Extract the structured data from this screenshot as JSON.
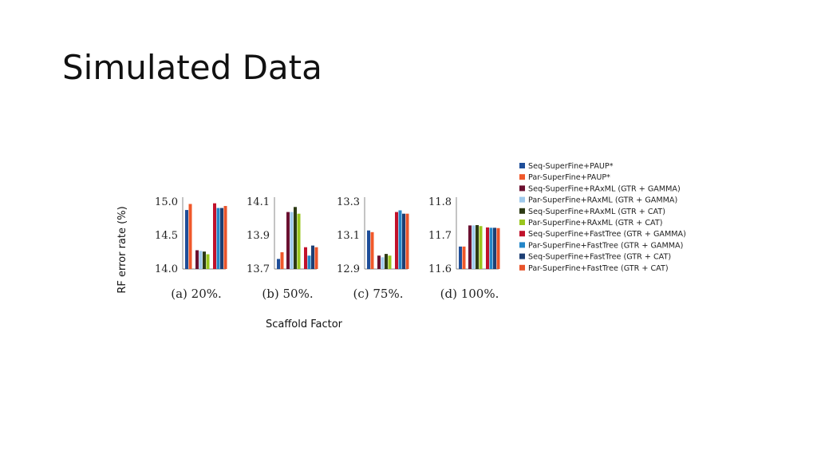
{
  "slide": {
    "title": "Simulated Data"
  },
  "chart_data": {
    "type": "bar",
    "xlabel": "Scaffold Factor",
    "ylabel": "RF error rate (%)",
    "legend_position": "right",
    "series": [
      {
        "name": "Seq-SuperFine+PAUP*",
        "color": "#1f4e99"
      },
      {
        "name": "Par-SuperFine+PAUP*",
        "color": "#f0582a"
      },
      {
        "name": "Seq-SuperFine+RAxML (GTR + GAMMA)",
        "color": "#6b1030"
      },
      {
        "name": "Par-SuperFine+RAxML (GTR + GAMMA)",
        "color": "#9ec9ec"
      },
      {
        "name": "Seq-SuperFine+RAxML (GTR + CAT)",
        "color": "#2d3a14"
      },
      {
        "name": "Par-SuperFine+RAxML (GTR + CAT)",
        "color": "#9ac61e"
      },
      {
        "name": "Seq-SuperFine+FastTree (GTR + GAMMA)",
        "color": "#c1122b"
      },
      {
        "name": "Par-SuperFine+FastTree (GTR + GAMMA)",
        "color": "#2486c8"
      },
      {
        "name": "Seq-SuperFine+FastTree (GTR + CAT)",
        "color": "#1d3f74"
      },
      {
        "name": "Par-SuperFine+FastTree (GTR + CAT)",
        "color": "#e8542b"
      }
    ],
    "panels": [
      {
        "label": "(a) 20%",
        "ylim": [
          14.0,
          15.0
        ],
        "yticks": [
          "15.0",
          "14.5",
          "14.0"
        ],
        "values": [
          14.88,
          14.97,
          14.28,
          14.27,
          14.26,
          14.22,
          14.98,
          14.91,
          14.91,
          14.94
        ]
      },
      {
        "label": "(b) 50%",
        "ylim": [
          13.7,
          14.1
        ],
        "yticks": [
          "14.1",
          "13.9",
          "13.7"
        ],
        "values": [
          13.76,
          13.8,
          14.04,
          14.04,
          14.07,
          14.03,
          13.83,
          13.78,
          13.84,
          13.83
        ]
      },
      {
        "label": "(c) 75%",
        "ylim": [
          12.9,
          13.3
        ],
        "yticks": [
          "13.3",
          "13.1",
          "12.9"
        ],
        "values": [
          13.13,
          13.12,
          12.98,
          12.97,
          12.99,
          12.98,
          13.24,
          13.25,
          13.23,
          13.23
        ]
      },
      {
        "label": "(d) 100%",
        "ylim": [
          11.6,
          11.8
        ],
        "yticks": [
          "11.8",
          "11.7",
          "11.6"
        ],
        "values": [
          11.667,
          11.667,
          11.73,
          11.73,
          11.731,
          11.728,
          11.724,
          11.723,
          11.723,
          11.722
        ]
      }
    ]
  }
}
